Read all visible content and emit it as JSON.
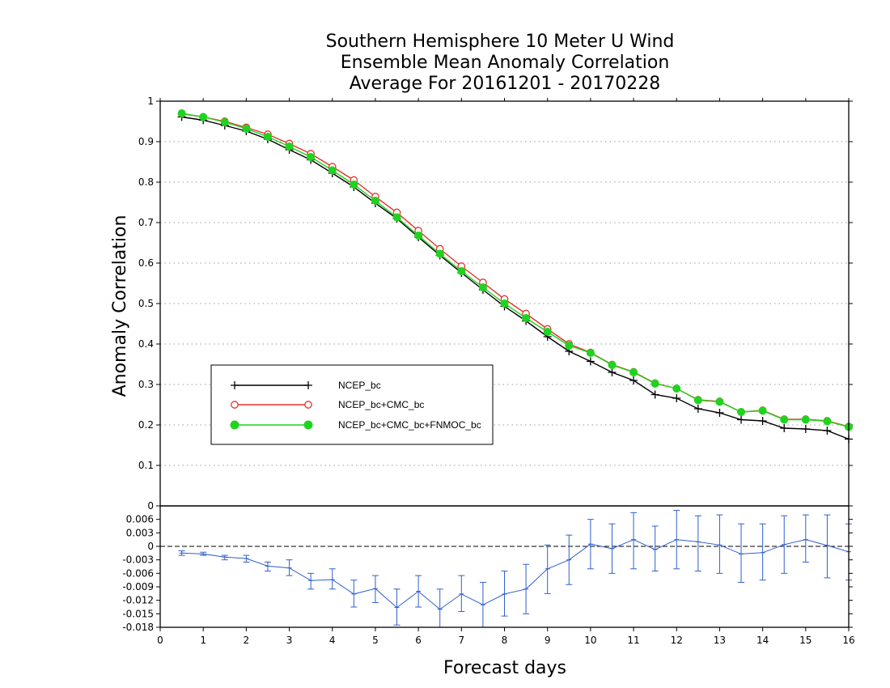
{
  "chart_data": [
    {
      "type": "line",
      "title": [
        "Southern Hemisphere 10 Meter U Wind",
        "Ensemble Mean Anomaly Correlation",
        "Average For 20161201 - 20170228"
      ],
      "ylabel": "Anomaly Correlation",
      "xlabel": "",
      "xlim": [
        0,
        16
      ],
      "ylim": [
        0,
        1
      ],
      "yticks": [
        "0",
        "0.1",
        "0.2",
        "0.3",
        "0.4",
        "0.5",
        "0.6",
        "0.7",
        "0.8",
        "0.9",
        "1"
      ],
      "grid": true,
      "legend_position": "left-middle",
      "x": [
        0.5,
        1,
        1.5,
        2,
        2.5,
        3,
        3.5,
        4,
        4.5,
        5,
        5.5,
        6,
        6.5,
        7,
        7.5,
        8,
        8.5,
        9,
        9.5,
        10,
        10.5,
        11,
        11.5,
        12,
        12.5,
        13,
        13.5,
        14,
        14.5,
        15,
        15.5,
        16
      ],
      "series": [
        {
          "name": "NCEP_bc",
          "color": "#000000",
          "marker": "plus",
          "values": [
            0.961,
            0.953,
            0.94,
            0.926,
            0.906,
            0.88,
            0.855,
            0.822,
            0.788,
            0.748,
            0.71,
            0.664,
            0.619,
            0.576,
            0.534,
            0.493,
            0.457,
            0.418,
            0.382,
            0.357,
            0.33,
            0.31,
            0.275,
            0.266,
            0.24,
            0.23,
            0.213,
            0.21,
            0.192,
            0.19,
            0.186,
            0.165
          ]
        },
        {
          "name": "NCEP_bc+CMC_bc",
          "color": "#e0332b",
          "marker": "open-circle",
          "values": [
            0.969,
            0.961,
            0.95,
            0.935,
            0.918,
            0.895,
            0.87,
            0.838,
            0.805,
            0.764,
            0.725,
            0.68,
            0.635,
            0.592,
            0.552,
            0.511,
            0.475,
            0.437,
            0.4,
            0.379,
            0.349,
            0.331,
            0.303,
            0.29,
            0.262,
            0.258,
            0.232,
            0.236,
            0.214,
            0.214,
            0.21,
            0.196
          ]
        },
        {
          "name": "NCEP_bc+CMC_bc+FNMOC_bc",
          "color": "#1fd41f",
          "marker": "filled-circle",
          "values": [
            0.97,
            0.961,
            0.948,
            0.932,
            0.912,
            0.888,
            0.862,
            0.829,
            0.794,
            0.754,
            0.713,
            0.668,
            0.623,
            0.58,
            0.54,
            0.5,
            0.464,
            0.43,
            0.396,
            0.378,
            0.348,
            0.33,
            0.302,
            0.29,
            0.261,
            0.257,
            0.232,
            0.235,
            0.213,
            0.213,
            0.209,
            0.195
          ]
        }
      ]
    },
    {
      "type": "line",
      "title": "",
      "xlabel": "Forecast days",
      "ylabel": "",
      "xlim": [
        0,
        16
      ],
      "ylim": [
        -0.018,
        0.009
      ],
      "xticks": [
        "0",
        "1",
        "2",
        "3",
        "4",
        "5",
        "6",
        "7",
        "8",
        "9",
        "10",
        "11",
        "12",
        "13",
        "14",
        "15",
        "16"
      ],
      "yticks": [
        "0.006",
        "0.003",
        "0",
        "-0.003",
        "-0.006",
        "-0.009",
        "-0.012",
        "-0.015",
        "-0.018"
      ],
      "zero_line": true,
      "x": [
        0.5,
        1,
        1.5,
        2,
        2.5,
        3,
        3.5,
        4,
        4.5,
        5,
        5.5,
        6,
        6.5,
        7,
        7.5,
        8,
        8.5,
        9,
        9.5,
        10,
        10.5,
        11,
        11.5,
        12,
        12.5,
        13,
        13.5,
        14,
        14.5,
        15,
        15.5,
        16
      ],
      "series": [
        {
          "name": "",
          "color": "#2f5fcf",
          "values": [
            -0.0015,
            -0.0017,
            -0.0024,
            -0.0027,
            -0.0044,
            -0.0048,
            -0.0076,
            -0.0074,
            -0.0106,
            -0.0094,
            -0.0136,
            -0.01,
            -0.014,
            -0.0106,
            -0.013,
            -0.0106,
            -0.0095,
            -0.005,
            -0.003,
            0.0005,
            -0.0005,
            0.0015,
            -0.0007,
            0.0015,
            0.001,
            0.0003,
            -0.0017,
            -0.0014,
            0.0004,
            0.0015,
            0.0002,
            -0.0012
          ],
          "error_low": [
            -0.002,
            -0.002,
            -0.003,
            -0.0035,
            -0.0055,
            -0.0065,
            -0.0095,
            -0.0095,
            -0.0135,
            -0.0125,
            -0.0175,
            -0.0135,
            -0.0185,
            -0.0145,
            -0.018,
            -0.0155,
            -0.015,
            -0.0105,
            -0.0085,
            -0.005,
            -0.006,
            -0.005,
            -0.0055,
            -0.005,
            -0.0055,
            -0.006,
            -0.008,
            -0.0075,
            -0.006,
            -0.0035,
            -0.007,
            -0.0075
          ],
          "error_high": [
            -0.001,
            -0.0013,
            -0.002,
            -0.002,
            -0.0035,
            -0.003,
            -0.006,
            -0.005,
            -0.0075,
            -0.0065,
            -0.0095,
            -0.0065,
            -0.0095,
            -0.0065,
            -0.008,
            -0.0055,
            -0.004,
            0.0003,
            0.0025,
            0.006,
            0.005,
            0.0075,
            0.0045,
            0.008,
            0.0068,
            0.007,
            0.005,
            0.005,
            0.0068,
            0.007,
            0.007,
            0.005
          ]
        }
      ]
    }
  ]
}
